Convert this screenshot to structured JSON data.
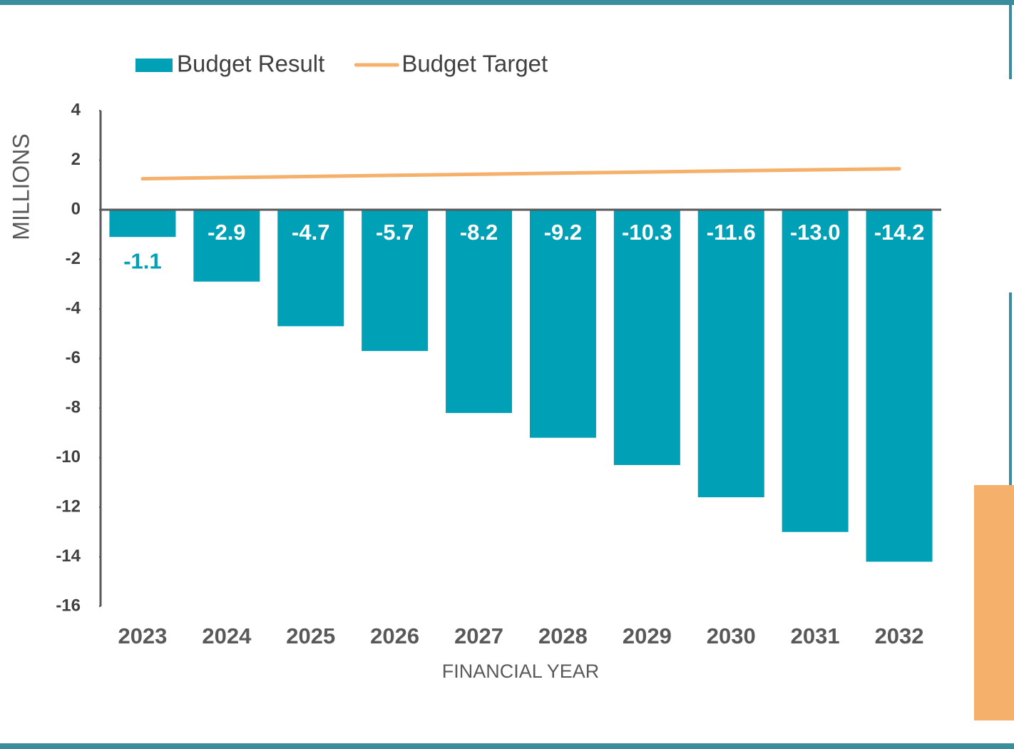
{
  "chart_data": {
    "type": "bar",
    "categories": [
      "2023",
      "2024",
      "2025",
      "2026",
      "2027",
      "2028",
      "2029",
      "2030",
      "2031",
      "2032"
    ],
    "series": [
      {
        "name": "Budget Result",
        "type": "bar",
        "color": "#00a0b6",
        "values": [
          -1.1,
          -2.9,
          -4.7,
          -5.7,
          -8.2,
          -9.2,
          -10.3,
          -11.6,
          -13.0,
          -14.2
        ],
        "value_labels": [
          "-1.1",
          "-2.9",
          "-4.7",
          "-5.7",
          "-8.2",
          "-9.2",
          "-10.3",
          "-11.6",
          "-13.0",
          "-14.2"
        ]
      },
      {
        "name": "Budget Target",
        "type": "line",
        "color": "#f5b06b",
        "values": [
          1.25,
          1.3,
          1.34,
          1.39,
          1.43,
          1.48,
          1.52,
          1.57,
          1.61,
          1.65
        ]
      }
    ],
    "ylabel": "MILLIONS",
    "xlabel": "FINANCIAL YEAR",
    "ylim": [
      -16,
      4
    ],
    "yticks": [
      4,
      2,
      0,
      -2,
      -4,
      -6,
      -8,
      -10,
      -12,
      -14,
      -16
    ],
    "grid": false,
    "legend": "top"
  }
}
